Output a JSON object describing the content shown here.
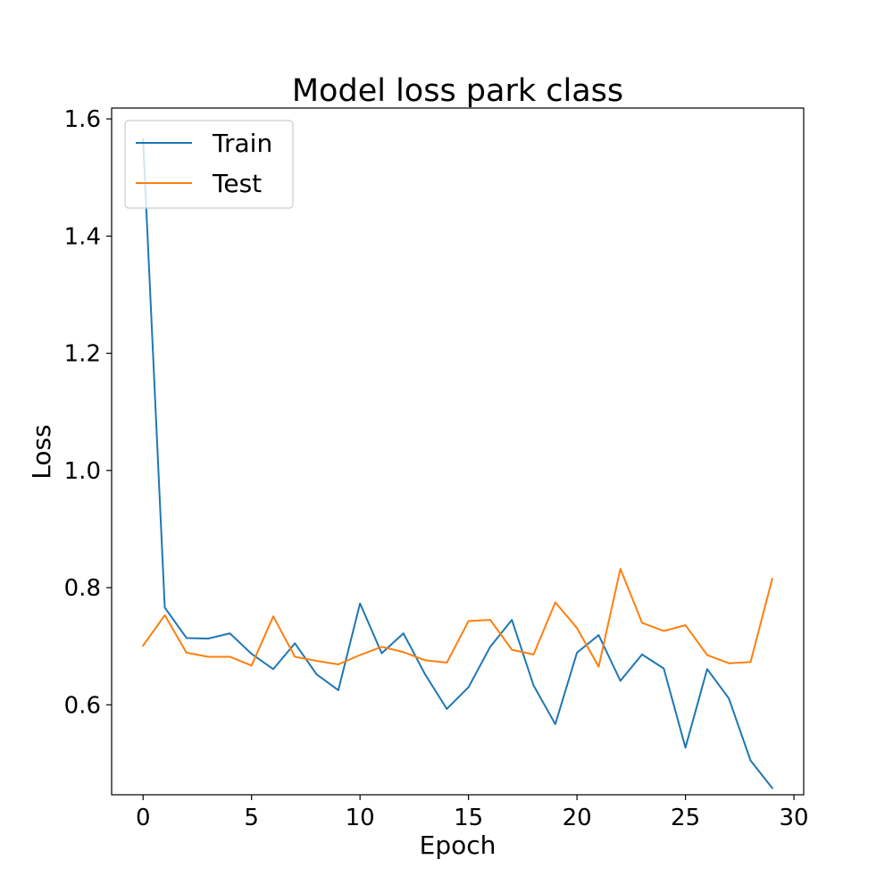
{
  "chart_data": {
    "type": "line",
    "title": "Model loss park class",
    "xlabel": "Epoch",
    "ylabel": "Loss",
    "xlim": [
      -1.45,
      30.45
    ],
    "ylim": [
      0.4465,
      1.6185
    ],
    "x_ticks": [
      0,
      5,
      10,
      15,
      20,
      25,
      30
    ],
    "y_ticks": [
      0.6,
      0.8,
      1.0,
      1.2,
      1.4,
      1.6
    ],
    "x_tick_labels": [
      "0",
      "5",
      "10",
      "15",
      "20",
      "25",
      "30"
    ],
    "y_tick_labels": [
      "0.6",
      "0.8",
      "1.0",
      "1.2",
      "1.4",
      "1.6"
    ],
    "grid": false,
    "legend_position": "upper-left",
    "x": [
      0,
      1,
      2,
      3,
      4,
      5,
      6,
      7,
      8,
      9,
      10,
      11,
      12,
      13,
      14,
      15,
      16,
      17,
      18,
      19,
      20,
      21,
      22,
      23,
      24,
      25,
      26,
      27,
      28,
      29
    ],
    "series": [
      {
        "name": "Train",
        "color": "#1f77b4",
        "values": [
          1.565,
          0.766,
          0.714,
          0.713,
          0.722,
          0.687,
          0.661,
          0.705,
          0.652,
          0.625,
          0.773,
          0.688,
          0.722,
          0.652,
          0.593,
          0.63,
          0.699,
          0.745,
          0.633,
          0.567,
          0.689,
          0.719,
          0.641,
          0.686,
          0.662,
          0.527,
          0.661,
          0.611,
          0.505,
          0.458
        ]
      },
      {
        "name": "Test",
        "color": "#ff7f0e",
        "values": [
          0.701,
          0.753,
          0.689,
          0.682,
          0.682,
          0.667,
          0.751,
          0.682,
          0.675,
          0.669,
          0.685,
          0.699,
          0.69,
          0.676,
          0.672,
          0.743,
          0.745,
          0.694,
          0.686,
          0.775,
          0.731,
          0.665,
          0.832,
          0.74,
          0.726,
          0.736,
          0.685,
          0.671,
          0.673,
          0.815
        ]
      }
    ]
  }
}
